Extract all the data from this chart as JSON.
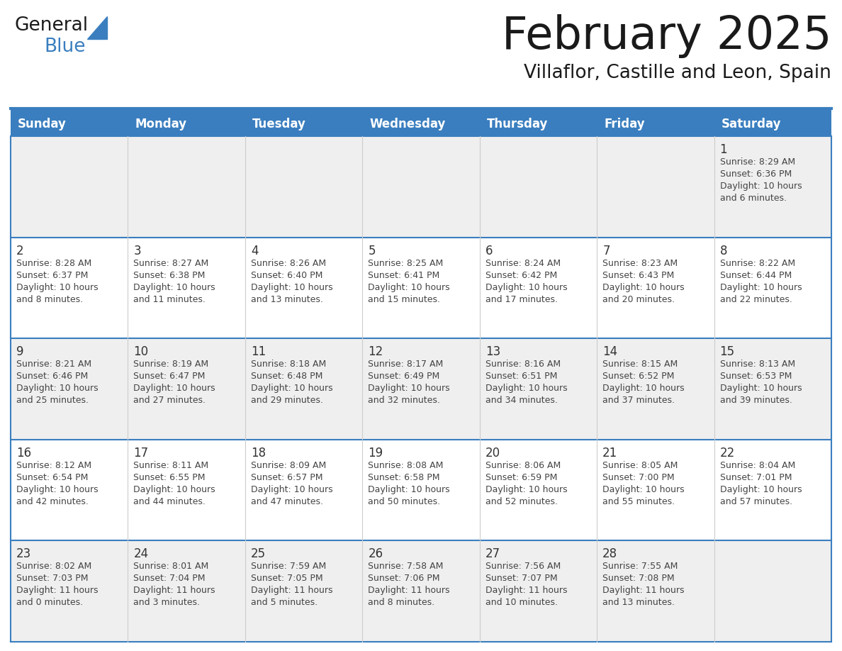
{
  "title": "February 2025",
  "subtitle": "Villaflor, Castille and Leon, Spain",
  "header_bg": "#3a7ebf",
  "header_text": "#ffffff",
  "row_bg_0": "#efefef",
  "row_bg_1": "#ffffff",
  "row_bg_2": "#efefef",
  "row_bg_3": "#ffffff",
  "row_bg_4": "#efefef",
  "border_color": "#3a7ebf",
  "cell_border_color": "#3a7ebf",
  "day_headers": [
    "Sunday",
    "Monday",
    "Tuesday",
    "Wednesday",
    "Thursday",
    "Friday",
    "Saturday"
  ],
  "days": [
    {
      "day": 1,
      "col": 6,
      "row": 0,
      "sunrise": "8:29 AM",
      "sunset": "6:36 PM",
      "daylight": "10 hours and 6 minutes."
    },
    {
      "day": 2,
      "col": 0,
      "row": 1,
      "sunrise": "8:28 AM",
      "sunset": "6:37 PM",
      "daylight": "10 hours and 8 minutes."
    },
    {
      "day": 3,
      "col": 1,
      "row": 1,
      "sunrise": "8:27 AM",
      "sunset": "6:38 PM",
      "daylight": "10 hours and 11 minutes."
    },
    {
      "day": 4,
      "col": 2,
      "row": 1,
      "sunrise": "8:26 AM",
      "sunset": "6:40 PM",
      "daylight": "10 hours and 13 minutes."
    },
    {
      "day": 5,
      "col": 3,
      "row": 1,
      "sunrise": "8:25 AM",
      "sunset": "6:41 PM",
      "daylight": "10 hours and 15 minutes."
    },
    {
      "day": 6,
      "col": 4,
      "row": 1,
      "sunrise": "8:24 AM",
      "sunset": "6:42 PM",
      "daylight": "10 hours and 17 minutes."
    },
    {
      "day": 7,
      "col": 5,
      "row": 1,
      "sunrise": "8:23 AM",
      "sunset": "6:43 PM",
      "daylight": "10 hours and 20 minutes."
    },
    {
      "day": 8,
      "col": 6,
      "row": 1,
      "sunrise": "8:22 AM",
      "sunset": "6:44 PM",
      "daylight": "10 hours and 22 minutes."
    },
    {
      "day": 9,
      "col": 0,
      "row": 2,
      "sunrise": "8:21 AM",
      "sunset": "6:46 PM",
      "daylight": "10 hours and 25 minutes."
    },
    {
      "day": 10,
      "col": 1,
      "row": 2,
      "sunrise": "8:19 AM",
      "sunset": "6:47 PM",
      "daylight": "10 hours and 27 minutes."
    },
    {
      "day": 11,
      "col": 2,
      "row": 2,
      "sunrise": "8:18 AM",
      "sunset": "6:48 PM",
      "daylight": "10 hours and 29 minutes."
    },
    {
      "day": 12,
      "col": 3,
      "row": 2,
      "sunrise": "8:17 AM",
      "sunset": "6:49 PM",
      "daylight": "10 hours and 32 minutes."
    },
    {
      "day": 13,
      "col": 4,
      "row": 2,
      "sunrise": "8:16 AM",
      "sunset": "6:51 PM",
      "daylight": "10 hours and 34 minutes."
    },
    {
      "day": 14,
      "col": 5,
      "row": 2,
      "sunrise": "8:15 AM",
      "sunset": "6:52 PM",
      "daylight": "10 hours and 37 minutes."
    },
    {
      "day": 15,
      "col": 6,
      "row": 2,
      "sunrise": "8:13 AM",
      "sunset": "6:53 PM",
      "daylight": "10 hours and 39 minutes."
    },
    {
      "day": 16,
      "col": 0,
      "row": 3,
      "sunrise": "8:12 AM",
      "sunset": "6:54 PM",
      "daylight": "10 hours and 42 minutes."
    },
    {
      "day": 17,
      "col": 1,
      "row": 3,
      "sunrise": "8:11 AM",
      "sunset": "6:55 PM",
      "daylight": "10 hours and 44 minutes."
    },
    {
      "day": 18,
      "col": 2,
      "row": 3,
      "sunrise": "8:09 AM",
      "sunset": "6:57 PM",
      "daylight": "10 hours and 47 minutes."
    },
    {
      "day": 19,
      "col": 3,
      "row": 3,
      "sunrise": "8:08 AM",
      "sunset": "6:58 PM",
      "daylight": "10 hours and 50 minutes."
    },
    {
      "day": 20,
      "col": 4,
      "row": 3,
      "sunrise": "8:06 AM",
      "sunset": "6:59 PM",
      "daylight": "10 hours and 52 minutes."
    },
    {
      "day": 21,
      "col": 5,
      "row": 3,
      "sunrise": "8:05 AM",
      "sunset": "7:00 PM",
      "daylight": "10 hours and 55 minutes."
    },
    {
      "day": 22,
      "col": 6,
      "row": 3,
      "sunrise": "8:04 AM",
      "sunset": "7:01 PM",
      "daylight": "10 hours and 57 minutes."
    },
    {
      "day": 23,
      "col": 0,
      "row": 4,
      "sunrise": "8:02 AM",
      "sunset": "7:03 PM",
      "daylight": "11 hours and 0 minutes."
    },
    {
      "day": 24,
      "col": 1,
      "row": 4,
      "sunrise": "8:01 AM",
      "sunset": "7:04 PM",
      "daylight": "11 hours and 3 minutes."
    },
    {
      "day": 25,
      "col": 2,
      "row": 4,
      "sunrise": "7:59 AM",
      "sunset": "7:05 PM",
      "daylight": "11 hours and 5 minutes."
    },
    {
      "day": 26,
      "col": 3,
      "row": 4,
      "sunrise": "7:58 AM",
      "sunset": "7:06 PM",
      "daylight": "11 hours and 8 minutes."
    },
    {
      "day": 27,
      "col": 4,
      "row": 4,
      "sunrise": "7:56 AM",
      "sunset": "7:07 PM",
      "daylight": "11 hours and 10 minutes."
    },
    {
      "day": 28,
      "col": 5,
      "row": 4,
      "sunrise": "7:55 AM",
      "sunset": "7:08 PM",
      "daylight": "11 hours and 13 minutes."
    }
  ],
  "logo_text_general": "General",
  "logo_text_blue": "Blue",
  "logo_color_general": "#1a1a1a",
  "logo_color_blue": "#3a7ebf",
  "logo_triangle_color": "#3a7ebf",
  "title_color": "#1a1a1a",
  "subtitle_color": "#1a1a1a",
  "text_color": "#444444",
  "day_num_color": "#333333"
}
